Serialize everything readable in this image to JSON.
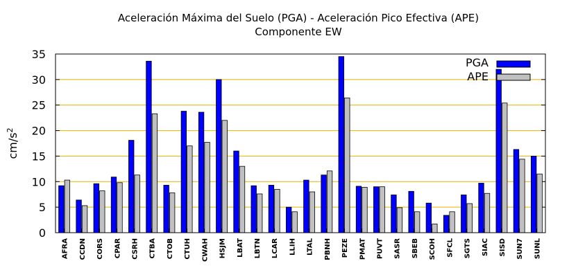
{
  "chart_data": {
    "type": "bar",
    "title": "Aceleración Máxima del Suelo (PGA) -  Aceleración Pico Efectiva (APE)",
    "subtitle": "Componente EW",
    "xlabel": "",
    "ylabel": "cm/s",
    "ylabel_superscript": "2",
    "ylim": [
      0,
      35
    ],
    "yticks": [
      0,
      5,
      10,
      15,
      20,
      25,
      30,
      35
    ],
    "grid": "horizontal",
    "legend_position": "top-right",
    "categories": [
      "AFRA",
      "CCDN",
      "CORS",
      "CPAR",
      "CSRH",
      "CTBA",
      "CTOB",
      "CTUH",
      "CWAH",
      "HSJM",
      "LBAT",
      "LBTN",
      "LCAR",
      "LLIH",
      "LTAL",
      "PBNH",
      "PEZE",
      "PMAT",
      "PUVT",
      "SASR",
      "SBEB",
      "SCOH",
      "SFCL",
      "SGTS",
      "SIAC",
      "SISD",
      "SUN7",
      "SUNL"
    ],
    "series": [
      {
        "name": "PGA",
        "color": "#0000ff",
        "values": [
          9.2,
          6.4,
          9.6,
          10.9,
          18.1,
          33.6,
          9.3,
          23.8,
          23.6,
          30.0,
          16.0,
          9.2,
          9.3,
          5.0,
          10.3,
          11.3,
          34.5,
          9.1,
          9.0,
          7.4,
          8.1,
          5.8,
          3.4,
          7.4,
          9.7,
          32.0,
          16.3,
          15.0
        ]
      },
      {
        "name": "APE",
        "color": "#c0c0c0",
        "values": [
          10.3,
          5.3,
          8.2,
          9.8,
          11.3,
          23.3,
          7.8,
          17.0,
          17.7,
          22.0,
          13.0,
          7.6,
          8.5,
          4.1,
          8.0,
          12.1,
          26.4,
          8.9,
          9.0,
          4.9,
          4.1,
          1.7,
          4.1,
          5.7,
          7.7,
          25.4,
          14.4,
          11.5
        ]
      }
    ],
    "colors": {
      "grid": "#e8b000",
      "axis": "#000000"
    }
  }
}
